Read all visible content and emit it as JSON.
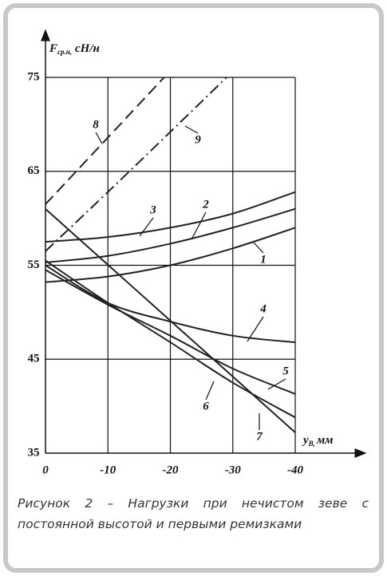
{
  "chart_data": {
    "type": "line",
    "y_label": {
      "main": "F",
      "sub": "ср.н,",
      "unit": "сН/н"
    },
    "x_label": {
      "main": "y",
      "sub": "В,",
      "unit": "мм"
    },
    "x": [
      0,
      -10,
      -20,
      -30,
      -40
    ],
    "xlim": [
      0,
      -40
    ],
    "xticks": [
      0,
      -10,
      -20,
      -30,
      -40
    ],
    "ylim": [
      35,
      75
    ],
    "yticks": [
      35,
      45,
      55,
      65,
      75
    ],
    "grid": true,
    "series": [
      {
        "name": "1",
        "color": "#222",
        "values": [
          53.2,
          53.8,
          55,
          56.8,
          59
        ]
      },
      {
        "name": "2",
        "color": "#222",
        "values": [
          55.3,
          56,
          57.3,
          59,
          61
        ]
      },
      {
        "name": "3",
        "color": "#222",
        "values": [
          57.5,
          58,
          59,
          60.5,
          62.8
        ]
      },
      {
        "name": "4",
        "color": "#222",
        "values": [
          55,
          51,
          49,
          47.5,
          46.8
        ]
      },
      {
        "name": "5",
        "color": "#222",
        "values": [
          54.5,
          50.8,
          47.5,
          44,
          41.3
        ]
      },
      {
        "name": "6",
        "color": "#222",
        "values": [
          55.5,
          51,
          46.8,
          42.5,
          38.8
        ]
      },
      {
        "name": "7",
        "color": "#222",
        "values": [
          61,
          55.05,
          49.1,
          43.15,
          37.2
        ]
      },
      {
        "name": "8",
        "color": "#222",
        "dash": "dashed",
        "x": [
          0,
          -10,
          -19
        ],
        "values": [
          61.5,
          68.6,
          75
        ]
      },
      {
        "name": "9",
        "color": "#222",
        "dash": "dashdot",
        "x": [
          0,
          -10,
          -20,
          -29
        ],
        "values": [
          56.5,
          62.8,
          69.2,
          75
        ]
      }
    ]
  },
  "caption": "Рисунок 2 – Нагрузки при нечистом зеве с постоянной высотой и первыми ремизками"
}
